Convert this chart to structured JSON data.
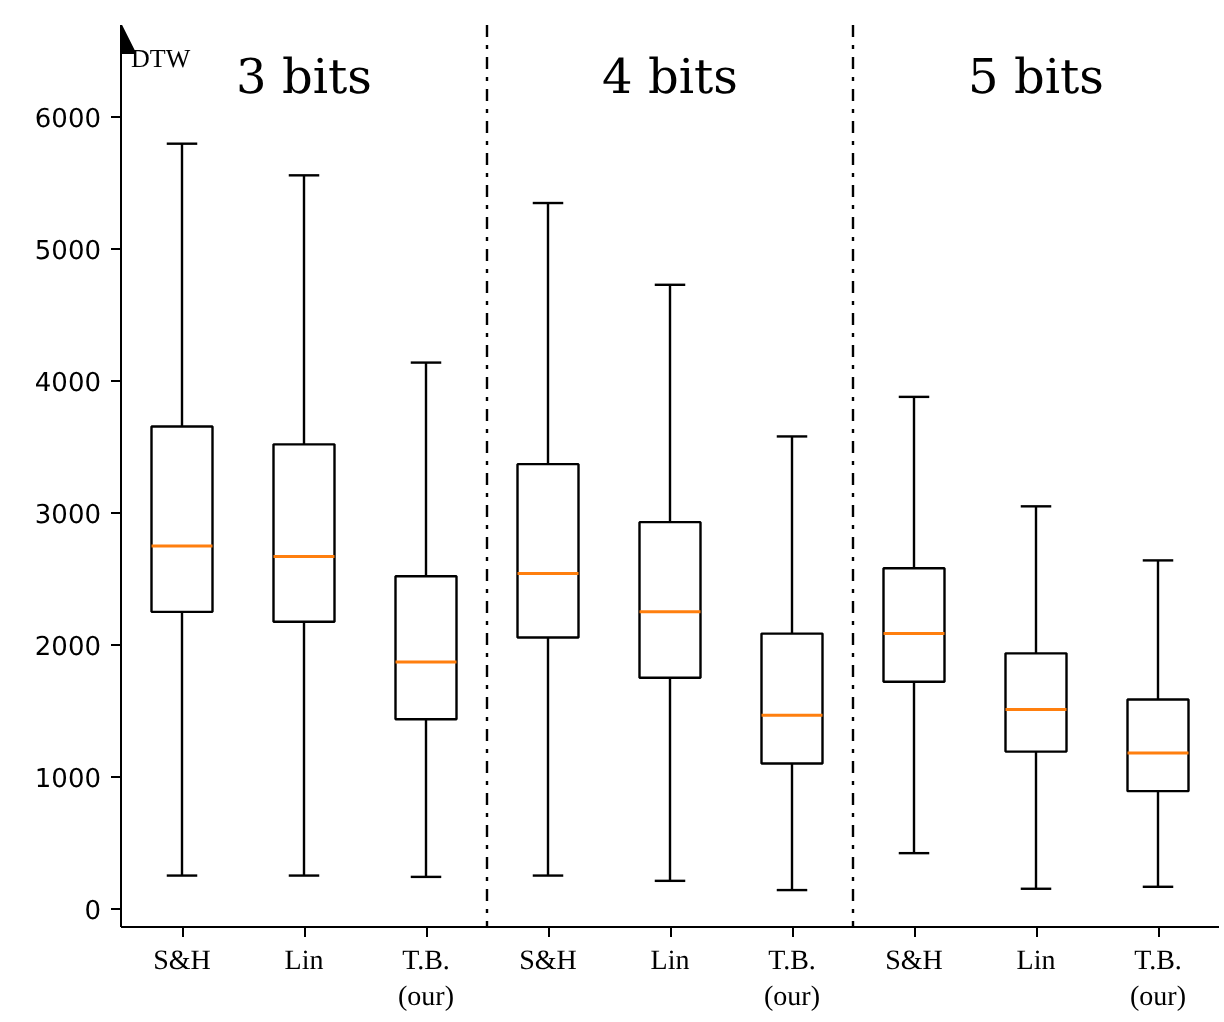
{
  "chart_data": {
    "type": "box",
    "ylabel": "DTW",
    "categories": [
      "S&H",
      "Lin",
      "T.B.\n(our)",
      "S&H",
      "Lin",
      "T.B.\n(our)",
      "S&H",
      "Lin",
      "T.B.\n(our)"
    ],
    "boxes": [
      {
        "low": 250,
        "q1": 2250,
        "median": 2750,
        "q3": 3655,
        "high": 5800
      },
      {
        "low": 250,
        "q1": 2175,
        "median": 2670,
        "q3": 3520,
        "high": 5560
      },
      {
        "low": 240,
        "q1": 1435,
        "median": 1870,
        "q3": 2520,
        "high": 4140
      },
      {
        "low": 250,
        "q1": 2055,
        "median": 2540,
        "q3": 3370,
        "high": 5350
      },
      {
        "low": 210,
        "q1": 1750,
        "median": 2250,
        "q3": 2930,
        "high": 4730
      },
      {
        "low": 140,
        "q1": 1100,
        "median": 1465,
        "q3": 2085,
        "high": 3580
      },
      {
        "low": 420,
        "q1": 1720,
        "median": 2085,
        "q3": 2580,
        "high": 3880
      },
      {
        "low": 150,
        "q1": 1190,
        "median": 1510,
        "q3": 1935,
        "high": 3050
      },
      {
        "low": 165,
        "q1": 890,
        "median": 1180,
        "q3": 1585,
        "high": 2640
      }
    ],
    "annotations": [
      "3 bits",
      "4 bits",
      "5 bits"
    ],
    "ylim": [
      -140,
      6700
    ],
    "yticks": [
      0,
      1000,
      2000,
      3000,
      4000,
      5000,
      6000
    ],
    "grid": false
  }
}
